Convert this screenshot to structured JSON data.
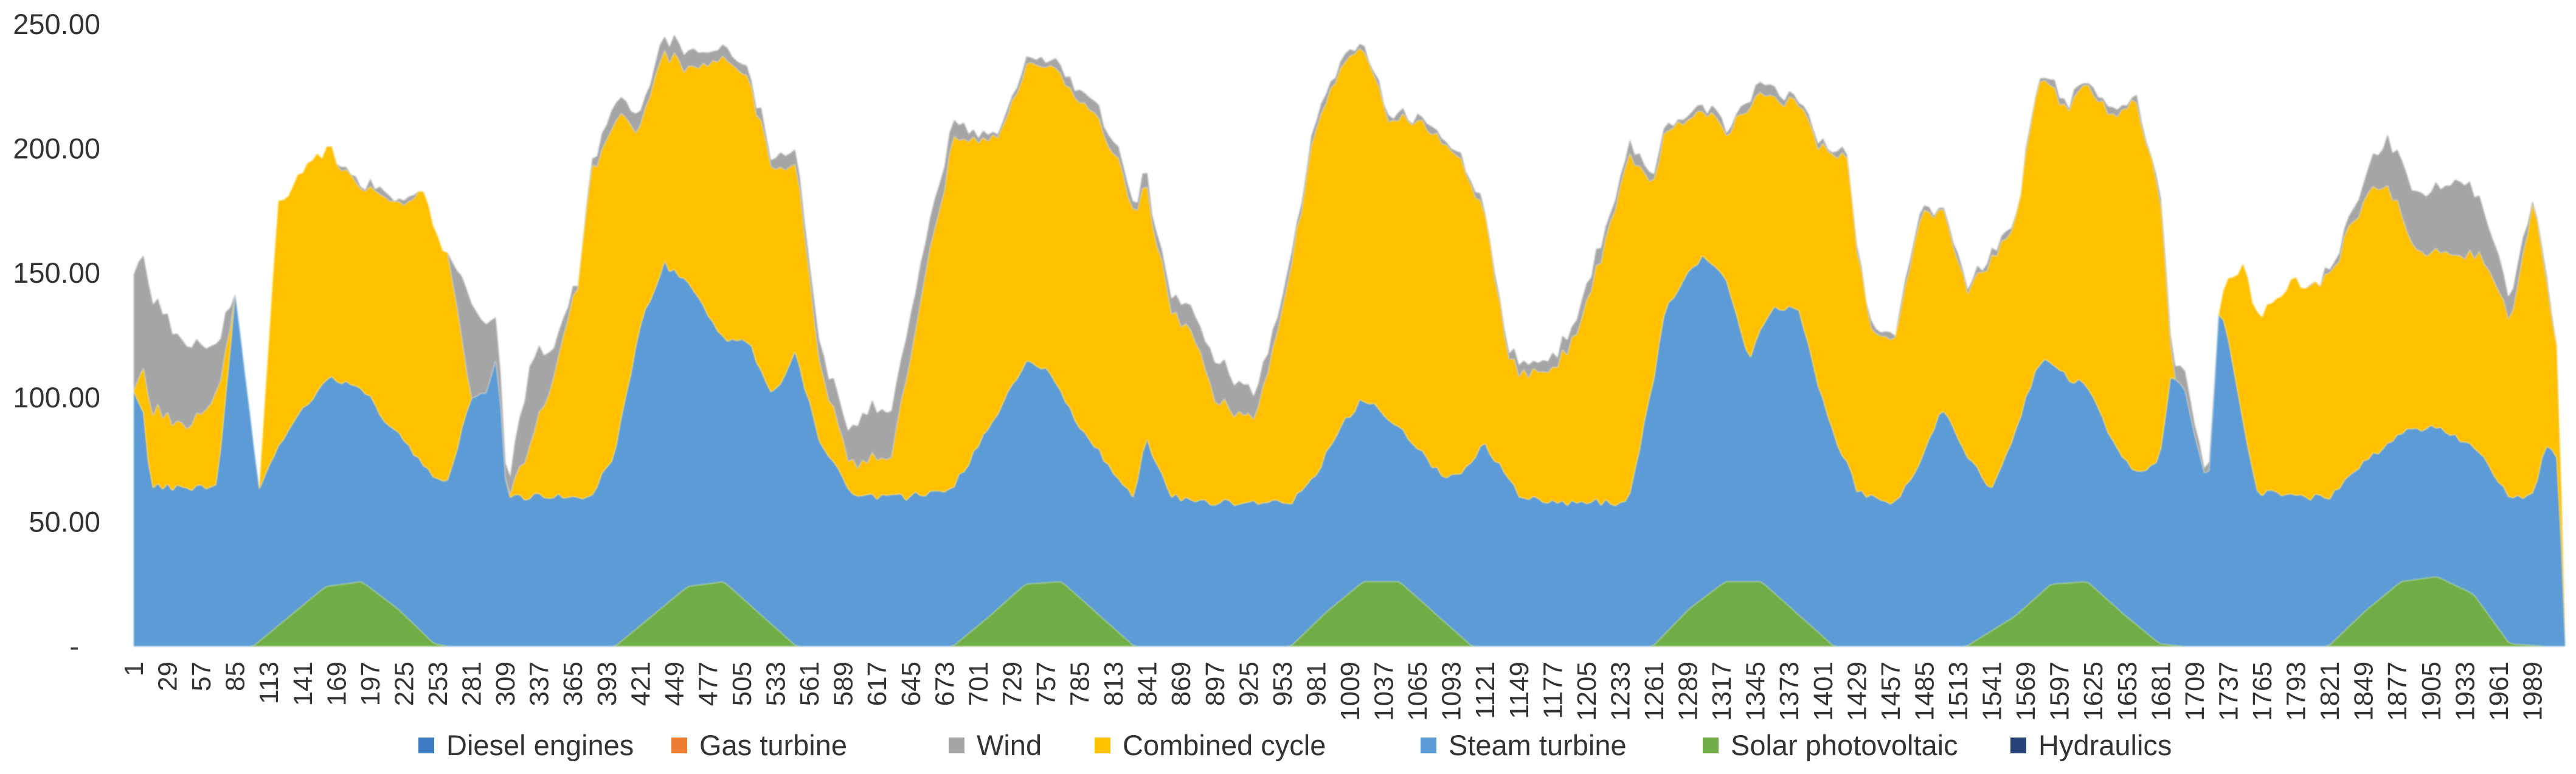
{
  "chart_data": {
    "type": "area",
    "stacked": true,
    "title": "",
    "xlabel": "",
    "ylabel": "",
    "ylim": [
      0,
      250
    ],
    "x_range": [
      1,
      2016
    ],
    "y_ticks": [
      {
        "value": 0,
        "label": "-"
      },
      {
        "value": 50,
        "label": "50.00"
      },
      {
        "value": 100,
        "label": "100.00"
      },
      {
        "value": 150,
        "label": "150.00"
      },
      {
        "value": 200,
        "label": "200.00"
      },
      {
        "value": 250,
        "label": "250.00"
      }
    ],
    "x_ticks": [
      "1",
      "29",
      "57",
      "85",
      "113",
      "141",
      "169",
      "197",
      "225",
      "253",
      "281",
      "309",
      "337",
      "365",
      "393",
      "421",
      "449",
      "477",
      "505",
      "533",
      "561",
      "589",
      "617",
      "645",
      "673",
      "701",
      "729",
      "757",
      "785",
      "813",
      "841",
      "869",
      "897",
      "925",
      "953",
      "981",
      "1009",
      "1037",
      "1065",
      "1093",
      "1121",
      "1149",
      "1177",
      "1205",
      "1233",
      "1261",
      "1289",
      "1317",
      "1345",
      "1373",
      "1401",
      "1429",
      "1457",
      "1485",
      "1513",
      "1541",
      "1569",
      "1597",
      "1625",
      "1653",
      "1681",
      "1709",
      "1737",
      "1765",
      "1793",
      "1821",
      "1849",
      "1877",
      "1905",
      "1933",
      "1961",
      "1989"
    ],
    "legend_position": "bottom",
    "grid": false,
    "colors": {
      "Diesel engines": "#3e7cc6",
      "Gas turbine": "#ed7d31",
      "Wind": "#a5a5a5",
      "Combined cycle": "#ffc000",
      "Steam turbine": "#5b9bd5",
      "Solar photovoltaic": "#70ad47",
      "Hydraulics": "#264478"
    },
    "legend": [
      "Diesel engines",
      "Gas turbine",
      "Wind",
      "Combined cycle",
      "Steam turbine",
      "Solar photovoltaic",
      "Hydraulics"
    ],
    "series_stack_order": [
      "Solar photovoltaic",
      "Steam turbine",
      "Combined cycle",
      "Wind"
    ],
    "series": [
      {
        "name": "Solar photovoltaic",
        "x": [
          1,
          50,
          100,
          130,
          160,
          190,
          220,
          250,
          262,
          300,
          330,
          370,
          400,
          430,
          460,
          490,
          520,
          550,
          580,
          610,
          640,
          680,
          710,
          740,
          770,
          800,
          830,
          860,
          880,
          920,
          960,
          990,
          1020,
          1050,
          1080,
          1110,
          1140,
          1160,
          1200,
          1260,
          1290,
          1320,
          1350,
          1380,
          1410,
          1440,
          1460,
          1480,
          1520,
          1560,
          1590,
          1620,
          1650,
          1680,
          1700,
          1740,
          1780,
          1820,
          1850,
          1880,
          1910,
          1940,
          1970,
          2000,
          2016
        ],
        "values": [
          0,
          0,
          0,
          12,
          24,
          26,
          15,
          1,
          0,
          0,
          0,
          0,
          0,
          12,
          24,
          26,
          13,
          0,
          0,
          0,
          0,
          0,
          12,
          25,
          26,
          13,
          0,
          0,
          0,
          0,
          0,
          14,
          26,
          26,
          13,
          0,
          0,
          0,
          0,
          0,
          15,
          26,
          26,
          13,
          0,
          0,
          0,
          0,
          0,
          12,
          25,
          26,
          13,
          1,
          0,
          0,
          0,
          0,
          14,
          26,
          28,
          21,
          1,
          0,
          0
        ]
      },
      {
        "name": "Steam turbine",
        "x": [
          1,
          10,
          15,
          50,
          70,
          85,
          95,
          105,
          112,
          120,
          140,
          160,
          190,
          210,
          240,
          262,
          280,
          295,
          302,
          310,
          340,
          380,
          400,
          420,
          440,
          460,
          490,
          510,
          530,
          550,
          570,
          600,
          640,
          680,
          710,
          740,
          760,
          780,
          800,
          830,
          840,
          860,
          900,
          950,
          980,
          1000,
          1020,
          1040,
          1060,
          1090,
          1120,
          1150,
          1170,
          1200,
          1240,
          1270,
          1300,
          1320,
          1340,
          1360,
          1380,
          1400,
          1420,
          1430,
          1460,
          1480,
          1500,
          1520,
          1540,
          1560,
          1580,
          1600,
          1620,
          1640,
          1660,
          1680,
          1690,
          1700,
          1710,
          1720,
          1730,
          1760,
          1800,
          1850,
          1900,
          1950,
          1970,
          1990,
          2000,
          2010,
          2016
        ],
        "values": [
          102,
          92,
          64,
          64,
          64,
          141,
          102,
          60,
          68,
          72,
          78,
          84,
          78,
          72,
          68,
          66,
          100,
          103,
          118,
          60,
          60,
          60,
          78,
          120,
          138,
          122,
          98,
          106,
          92,
          118,
          80,
          60,
          60,
          64,
          76,
          90,
          84,
          70,
          66,
          60,
          84,
          60,
          58,
          58,
          58,
          70,
          74,
          66,
          60,
          58,
          82,
          60,
          58,
          58,
          58,
          130,
          138,
          122,
          90,
          114,
          124,
          96,
          74,
          62,
          58,
          72,
          96,
          76,
          58,
          74,
          94,
          84,
          78,
          66,
          60,
          74,
          110,
          104,
          84,
          62,
          140,
          62,
          60,
          60,
          60,
          60,
          60,
          60,
          82,
          76,
          2
        ]
      },
      {
        "name": "Combined cycle",
        "x": [
          1,
          15,
          40,
          70,
          85,
          95,
          105,
          110,
          120,
          140,
          160,
          190,
          220,
          240,
          262,
          280,
          300,
          310,
          340,
          370,
          380,
          400,
          420,
          440,
          460,
          490,
          520,
          550,
          570,
          590,
          610,
          630,
          650,
          680,
          700,
          720,
          740,
          760,
          790,
          820,
          840,
          860,
          880,
          900,
          930,
          950,
          980,
          1000,
          1020,
          1040,
          1060,
          1080,
          1100,
          1120,
          1140,
          1160,
          1190,
          1220,
          1240,
          1260,
          1280,
          1300,
          1320,
          1340,
          1360,
          1380,
          1400,
          1420,
          1440,
          1460,
          1480,
          1500,
          1520,
          1540,
          1560,
          1580,
          1600,
          1620,
          1640,
          1660,
          1680,
          1690,
          1700,
          1710,
          1720,
          1730,
          1750,
          1770,
          1790,
          1810,
          1830,
          1850,
          1870,
          1890,
          1910,
          1930,
          1950,
          1970,
          1990,
          2000,
          2010,
          2016
        ],
        "values": [
          0,
          32,
          24,
          36,
          0,
          0,
          0,
          32,
          96,
          96,
          92,
          82,
          92,
          110,
          90,
          0,
          0,
          0,
          34,
          88,
          130,
          134,
          80,
          86,
          84,
          116,
          100,
          76,
          30,
          12,
          14,
          16,
          70,
          140,
          124,
          110,
          118,
          124,
          134,
          126,
          100,
          76,
          66,
          40,
          34,
          70,
          140,
          144,
          142,
          122,
          128,
          136,
          126,
          96,
          48,
          50,
          60,
          102,
          140,
          78,
          66,
          60,
          58,
          100,
          86,
          82,
          100,
          124,
          68,
          64,
          100,
          80,
          66,
          92,
          84,
          112,
          108,
          120,
          130,
          150,
          110,
          0,
          0,
          0,
          0,
          0,
          64,
          74,
          86,
          84,
          94,
          106,
          104,
          72,
          70,
          74,
          80,
          70,
          118,
          68,
          40,
          0
        ]
      },
      {
        "name": "Wind",
        "x": [
          1,
          20,
          40,
          60,
          80,
          85,
          100,
          120,
          140,
          170,
          200,
          240,
          262,
          280,
          300,
          310,
          330,
          350,
          370,
          400,
          430,
          460,
          500,
          530,
          560,
          590,
          610,
          640,
          680,
          700,
          740,
          780,
          820,
          860,
          880,
          900,
          940,
          960,
          1000,
          1040,
          1080,
          1120,
          1160,
          1200,
          1240,
          1280,
          1320,
          1360,
          1400,
          1440,
          1480,
          1520,
          1560,
          1600,
          1640,
          1680,
          1700,
          1730,
          1760,
          1800,
          1840,
          1870,
          1900,
          1930,
          1960,
          1990,
          2016
        ],
        "values": [
          46,
          44,
          34,
          26,
          12,
          0,
          0,
          0,
          0,
          0,
          2,
          0,
          0,
          40,
          20,
          4,
          34,
          12,
          0,
          8,
          6,
          6,
          4,
          4,
          6,
          12,
          20,
          18,
          8,
          2,
          2,
          4,
          4,
          6,
          10,
          16,
          8,
          4,
          2,
          2,
          2,
          2,
          4,
          6,
          4,
          2,
          2,
          4,
          2,
          2,
          2,
          2,
          2,
          2,
          2,
          2,
          8,
          0,
          0,
          0,
          4,
          20,
          24,
          30,
          14,
          2,
          0
        ]
      }
    ]
  }
}
